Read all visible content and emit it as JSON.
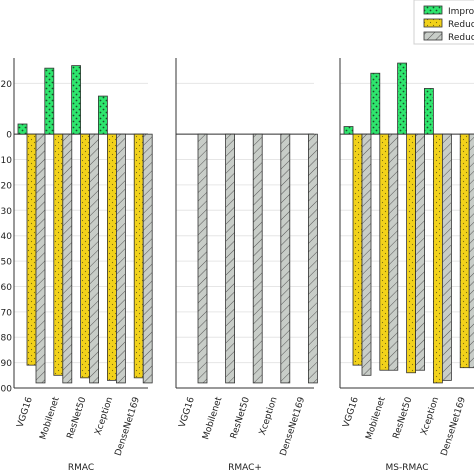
{
  "chart_data": {
    "type": "bar",
    "ylim": [
      -100,
      30
    ],
    "yticks": [
      20,
      0,
      -10,
      -20,
      -30,
      -40,
      -50,
      -60,
      -70,
      -80,
      -90,
      -100
    ],
    "ytick_labels": [
      "20",
      "0",
      "10",
      "20",
      "30",
      "40",
      "50",
      "60",
      "70",
      "80",
      "90",
      "100"
    ],
    "grid": true,
    "legend_position": "top-right",
    "legend": [
      {
        "key": "improv",
        "label": "Improv",
        "color": "#2ee66e",
        "hatch": "dots"
      },
      {
        "key": "reduct_a",
        "label": "Reduct",
        "color": "#f2d21a",
        "hatch": "dots"
      },
      {
        "key": "reduct_b",
        "label": "Reduct",
        "color": "#c8cdc8",
        "hatch": "diagonal"
      }
    ],
    "colors": {
      "improv": "#2ee66e",
      "reduct_a": "#f2d21a",
      "reduct_b": "#c8cdc8",
      "axis": "#333333",
      "grid": "#e6e6e6"
    },
    "panels": [
      {
        "title": "RMAC",
        "categories": [
          "VGG16",
          "Mobilenet",
          "ResNet50",
          "Xception",
          "DenseNet169"
        ],
        "series": [
          {
            "key": "improv",
            "values": [
              4,
              26,
              27,
              15,
              0
            ]
          },
          {
            "key": "reduct_a",
            "values": [
              -91,
              -95,
              -96,
              -97,
              -96
            ]
          },
          {
            "key": "reduct_b",
            "values": [
              -98,
              -98,
              -98,
              -98,
              -98
            ]
          }
        ]
      },
      {
        "title": "RMAC+",
        "categories": [
          "VGG16",
          "Mobilenet",
          "ResNet50",
          "Xception",
          "DenseNet169"
        ],
        "series": [
          {
            "key": "improv",
            "values": [
              0,
              0,
              0,
              0,
              0
            ]
          },
          {
            "key": "reduct_a",
            "values": [
              0,
              0,
              0,
              0,
              0
            ]
          },
          {
            "key": "reduct_b",
            "values": [
              -98,
              -98,
              -98,
              -98,
              -98
            ]
          }
        ]
      },
      {
        "title": "MS-RMAC",
        "categories": [
          "VGG16",
          "Mobilenet",
          "ResNet50",
          "Xception",
          "DenseNet169"
        ],
        "series": [
          {
            "key": "improv",
            "values": [
              3,
              24,
              28,
              18,
              0
            ]
          },
          {
            "key": "reduct_a",
            "values": [
              -91,
              -93,
              -94,
              -98,
              -92
            ]
          },
          {
            "key": "reduct_b",
            "values": [
              -95,
              -93,
              -93,
              -97,
              -92
            ]
          }
        ]
      }
    ]
  }
}
